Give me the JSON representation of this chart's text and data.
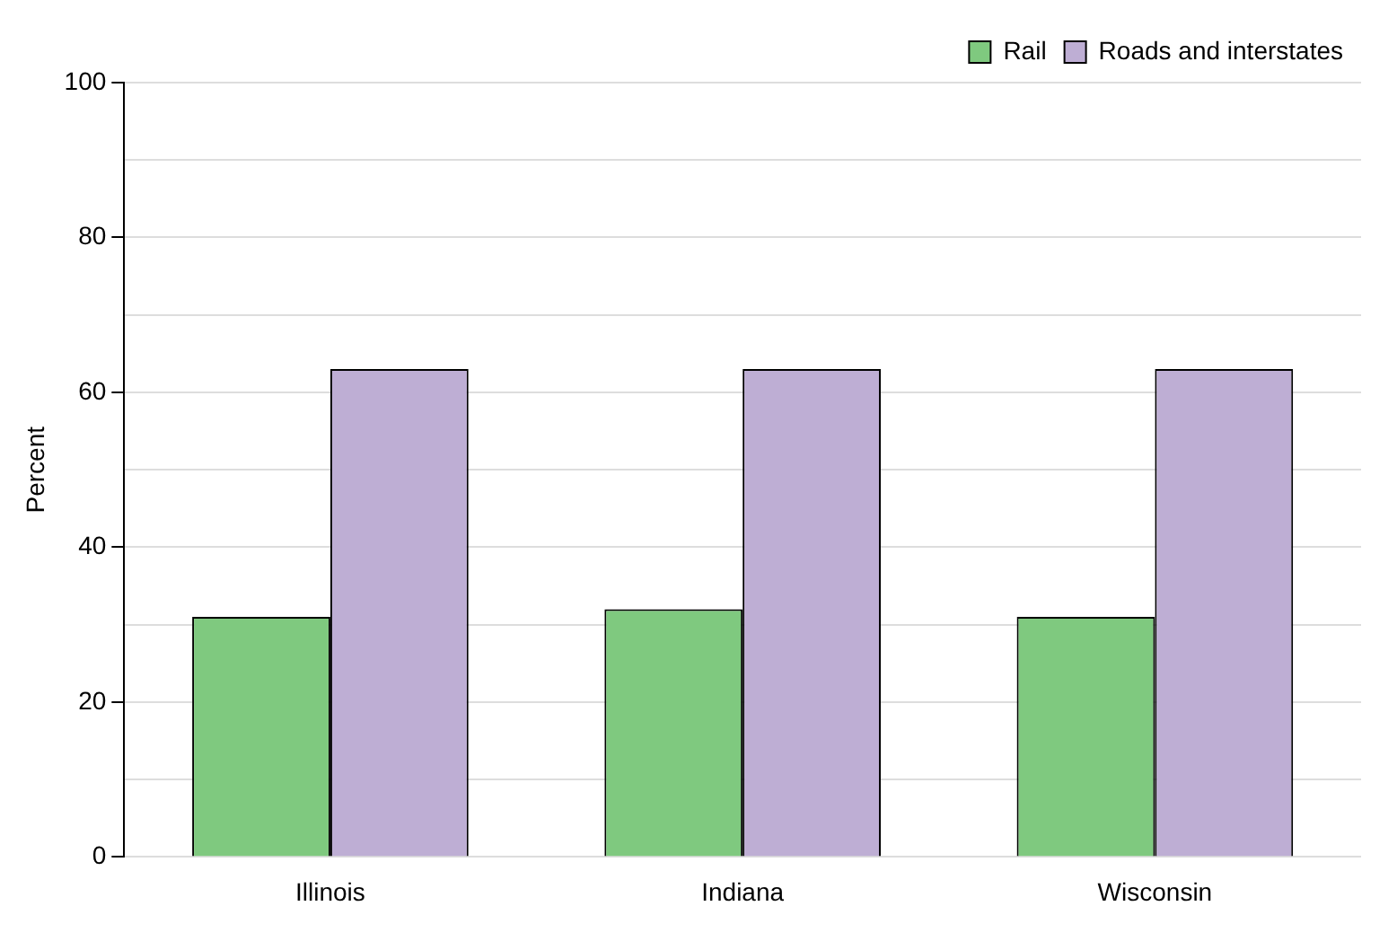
{
  "chart_data": {
    "type": "bar",
    "ylabel": "Percent",
    "categories": [
      "Illinois",
      "Indiana",
      "Wisconsin"
    ],
    "series": [
      {
        "name": "Rail",
        "color": "#7fc97f",
        "values": [
          31,
          32,
          31
        ]
      },
      {
        "name": "Roads and interstates",
        "color": "#beaed4",
        "values": [
          63,
          63,
          63
        ]
      }
    ],
    "ylim": [
      0,
      100
    ],
    "yticks": [
      0,
      {
        "value": 10,
        "label": null
      },
      20,
      {
        "value": 30,
        "label": null
      },
      40,
      {
        "value": 50,
        "label": null
      },
      60,
      {
        "value": 70,
        "label": null
      },
      80,
      {
        "value": 90,
        "label": null
      },
      100
    ],
    "grid": "y",
    "legend": "top right"
  }
}
